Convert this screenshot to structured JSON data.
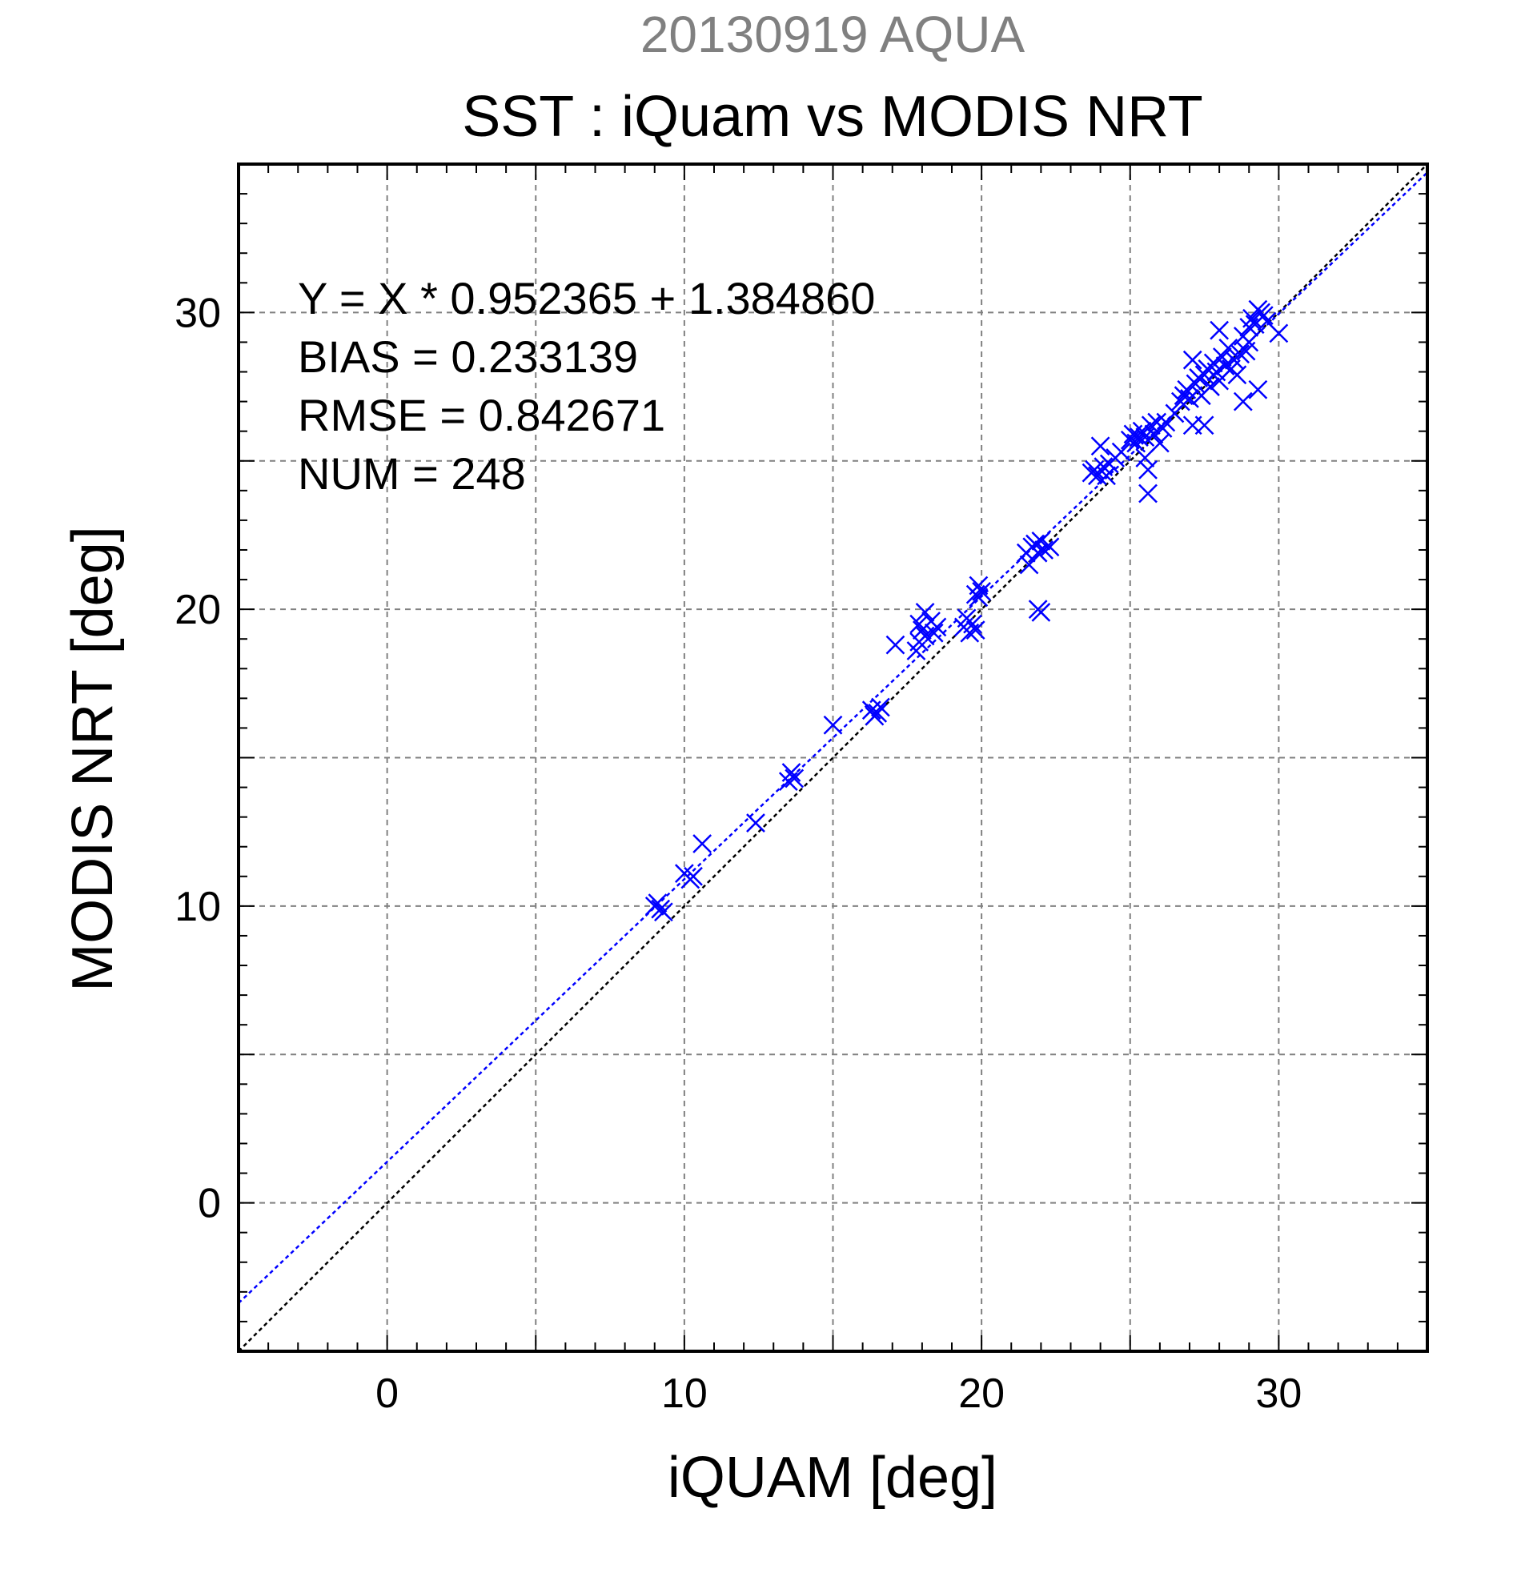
{
  "chart_data": {
    "type": "scatter",
    "supertitle": "20130919 AQUA",
    "title": "SST : iQuam vs MODIS NRT",
    "xlabel": "iQUAM [deg]",
    "ylabel": "MODIS NRT [deg]",
    "xlim": [
      -5,
      35
    ],
    "ylim": [
      -5,
      35
    ],
    "xticks": [
      0,
      10,
      20,
      30
    ],
    "yticks": [
      0,
      10,
      20,
      30
    ],
    "grid": true,
    "stats": [
      "Y = X * 0.952365 + 1.384860",
      "BIAS = 0.233139",
      "RMSE = 0.842671",
      "NUM = 248"
    ],
    "fit": {
      "slope": 0.952365,
      "intercept": 1.38486
    },
    "colors": {
      "points": "#0000ff",
      "fit_line": "#0000ff",
      "identity_line": "#000000",
      "supertitle": "#808080",
      "grid": "#808080"
    },
    "series": [
      {
        "marker": "x",
        "points": [
          [
            9.1,
            10.1
          ],
          [
            9.2,
            9.9
          ],
          [
            9.0,
            10.0
          ],
          [
            9.3,
            9.8
          ],
          [
            10.0,
            11.1
          ],
          [
            10.2,
            10.9
          ],
          [
            10.3,
            11.0
          ],
          [
            10.6,
            12.1
          ],
          [
            12.4,
            12.8
          ],
          [
            13.5,
            14.2
          ],
          [
            13.6,
            14.5
          ],
          [
            13.7,
            14.3
          ],
          [
            15.0,
            16.1
          ],
          [
            16.3,
            16.6
          ],
          [
            16.5,
            16.5
          ],
          [
            16.6,
            16.7
          ],
          [
            16.4,
            16.4
          ],
          [
            17.1,
            18.8
          ],
          [
            17.8,
            18.6
          ],
          [
            17.9,
            18.9
          ],
          [
            18.0,
            19.3
          ],
          [
            18.1,
            19.1
          ],
          [
            17.9,
            19.5
          ],
          [
            18.1,
            19.9
          ],
          [
            18.3,
            19.6
          ],
          [
            18.5,
            19.4
          ],
          [
            18.4,
            19.2
          ],
          [
            19.4,
            19.4
          ],
          [
            19.5,
            19.7
          ],
          [
            19.6,
            19.2
          ],
          [
            19.7,
            19.5
          ],
          [
            19.8,
            19.3
          ],
          [
            19.8,
            20.5
          ],
          [
            19.9,
            20.8
          ],
          [
            20.0,
            20.6
          ],
          [
            19.9,
            20.4
          ],
          [
            21.5,
            21.9
          ],
          [
            21.6,
            21.5
          ],
          [
            21.7,
            22.1
          ],
          [
            21.8,
            22.2
          ],
          [
            21.9,
            21.9
          ],
          [
            22.0,
            22.3
          ],
          [
            22.1,
            22.0
          ],
          [
            22.3,
            22.1
          ],
          [
            21.9,
            20.0
          ],
          [
            22.0,
            19.9
          ],
          [
            23.7,
            24.6
          ],
          [
            23.8,
            24.7
          ],
          [
            23.9,
            24.5
          ],
          [
            24.0,
            25.5
          ],
          [
            24.1,
            24.8
          ],
          [
            24.2,
            24.5
          ],
          [
            24.3,
            24.9
          ],
          [
            24.5,
            25.1
          ],
          [
            24.7,
            25.3
          ],
          [
            25.0,
            25.7
          ],
          [
            25.1,
            25.9
          ],
          [
            25.2,
            25.6
          ],
          [
            25.3,
            25.8
          ],
          [
            25.4,
            26.0
          ],
          [
            25.5,
            25.8
          ],
          [
            25.5,
            25.1
          ],
          [
            25.6,
            24.7
          ],
          [
            25.6,
            23.9
          ],
          [
            25.7,
            26.2
          ],
          [
            25.8,
            25.9
          ],
          [
            25.9,
            26.3
          ],
          [
            26.0,
            25.6
          ],
          [
            26.1,
            26.1
          ],
          [
            26.2,
            26.3
          ],
          [
            26.5,
            26.6
          ],
          [
            26.7,
            27.0
          ],
          [
            26.8,
            27.2
          ],
          [
            26.9,
            27.4
          ],
          [
            27.0,
            27.1
          ],
          [
            27.1,
            26.2
          ],
          [
            27.1,
            28.4
          ],
          [
            27.2,
            27.6
          ],
          [
            27.3,
            27.8
          ],
          [
            27.4,
            27.2
          ],
          [
            27.5,
            27.9
          ],
          [
            27.5,
            26.2
          ],
          [
            27.6,
            28.1
          ],
          [
            27.7,
            27.5
          ],
          [
            27.8,
            28.3
          ],
          [
            27.9,
            28.0
          ],
          [
            28.0,
            29.4
          ],
          [
            28.0,
            27.7
          ],
          [
            28.1,
            28.5
          ],
          [
            28.2,
            28.2
          ],
          [
            28.3,
            28.8
          ],
          [
            28.4,
            28.1
          ],
          [
            28.5,
            28.4
          ],
          [
            28.6,
            27.9
          ],
          [
            28.7,
            28.6
          ],
          [
            28.8,
            27.0
          ],
          [
            28.8,
            29.2
          ],
          [
            28.9,
            28.7
          ],
          [
            29.0,
            29.5
          ],
          [
            29.0,
            29.0
          ],
          [
            29.1,
            29.8
          ],
          [
            29.2,
            29.6
          ],
          [
            29.3,
            30.1
          ],
          [
            29.3,
            27.4
          ],
          [
            29.4,
            30.0
          ],
          [
            29.5,
            29.9
          ],
          [
            29.6,
            29.7
          ],
          [
            30.0,
            29.3
          ]
        ]
      }
    ]
  }
}
